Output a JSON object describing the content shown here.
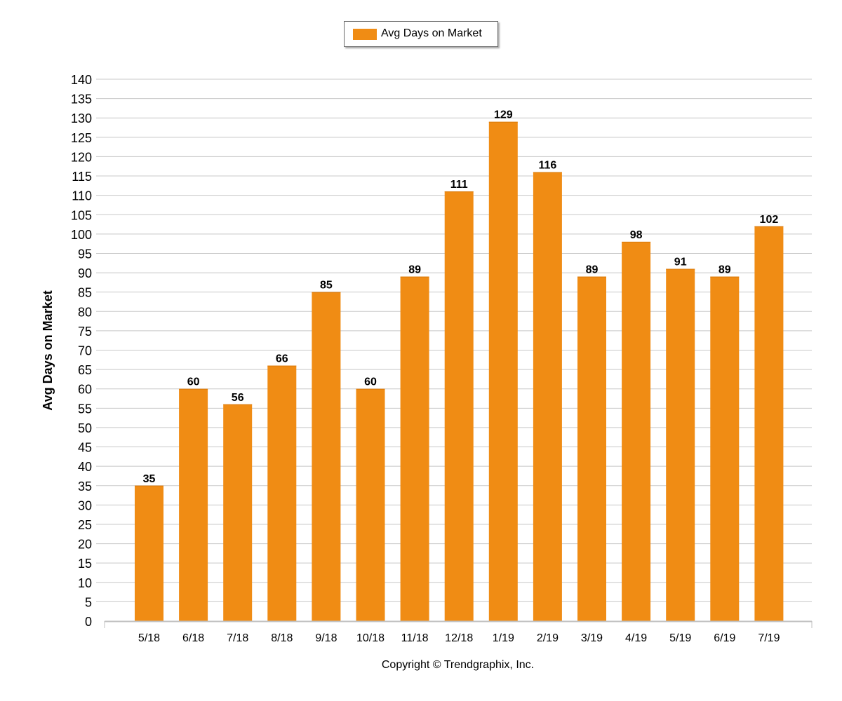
{
  "legend": {
    "label": "Avg Days on Market"
  },
  "copyright": "Copyright © Trendgraphix, Inc.",
  "colors": {
    "bar": "#f08c14",
    "grid": "#c8c8c8",
    "axis": "#c0c0c0"
  },
  "chart_data": {
    "type": "bar",
    "categories": [
      "5/18",
      "6/18",
      "7/18",
      "8/18",
      "9/18",
      "10/18",
      "11/18",
      "12/18",
      "1/19",
      "2/19",
      "3/19",
      "4/19",
      "5/19",
      "6/19",
      "7/19"
    ],
    "series": [
      {
        "name": "Avg Days on Market",
        "values": [
          35,
          60,
          56,
          66,
          85,
          60,
          89,
          111,
          129,
          116,
          89,
          98,
          91,
          89,
          102
        ]
      }
    ],
    "ylabel": "Avg Days on Market",
    "xlabel": "",
    "ylim": [
      0,
      140
    ],
    "ytick_step": 5,
    "grid": true,
    "data_labels": true,
    "legend_position": "top-center"
  }
}
